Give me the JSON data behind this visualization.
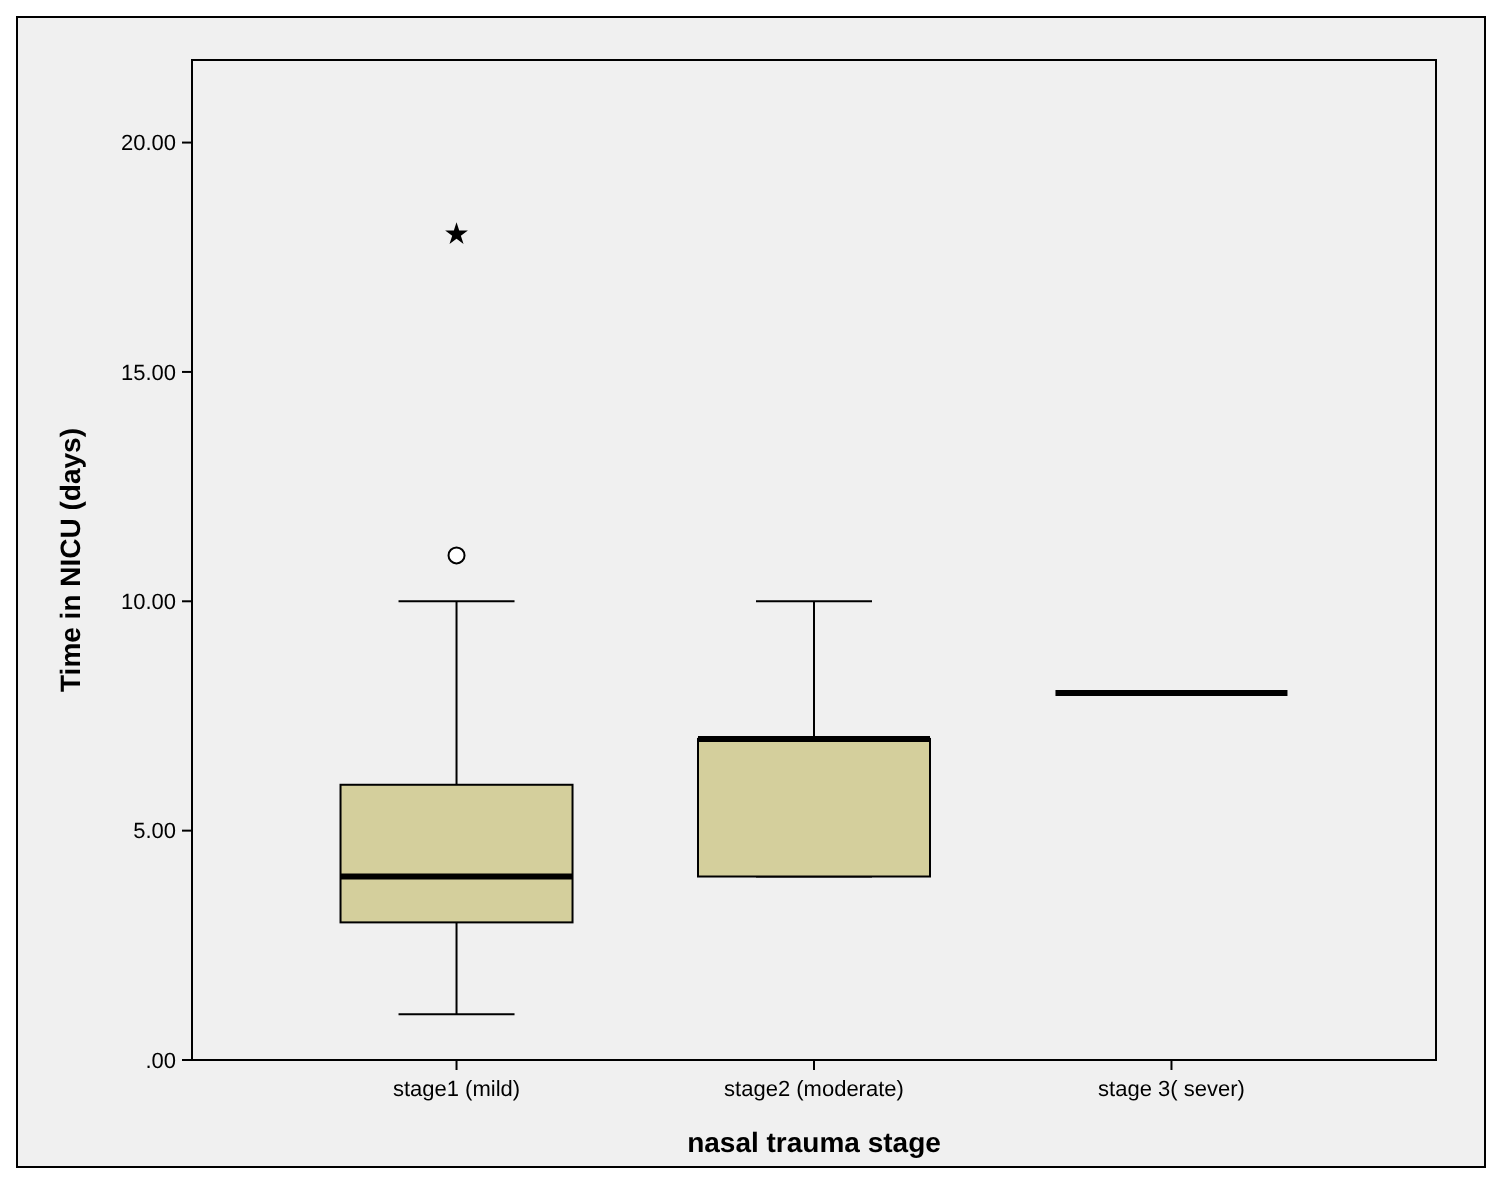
{
  "chart_data": {
    "type": "box",
    "xlabel": "nasal trauma stage",
    "ylabel": "Time in NICU (days)",
    "categories": [
      "stage1 (mild)",
      "stage2 (moderate)",
      "stage 3( sever)"
    ],
    "boxes": [
      {
        "low": 1,
        "q1": 3,
        "median": 4,
        "q3": 6,
        "high": 10,
        "outliers": [
          11,
          18
        ]
      },
      {
        "low": 4,
        "q1": 4,
        "median": 7,
        "q3": 7,
        "high": 10
      },
      {
        "low": 8,
        "q1": 8,
        "median": 8,
        "q3": 8,
        "high": 8
      }
    ],
    "colors": [
      "#d4cf9c",
      "#d4cf9c",
      "#000000"
    ],
    "ylim": [
      0,
      21.8
    ],
    "yticks": [
      {
        "value": 0,
        "label": ".00"
      },
      {
        "value": 5,
        "label": "5.00"
      },
      {
        "value": 10,
        "label": "10.00"
      },
      {
        "value": 15,
        "label": "15.00"
      },
      {
        "value": 20,
        "label": "20.00"
      }
    ],
    "grid": false
  }
}
